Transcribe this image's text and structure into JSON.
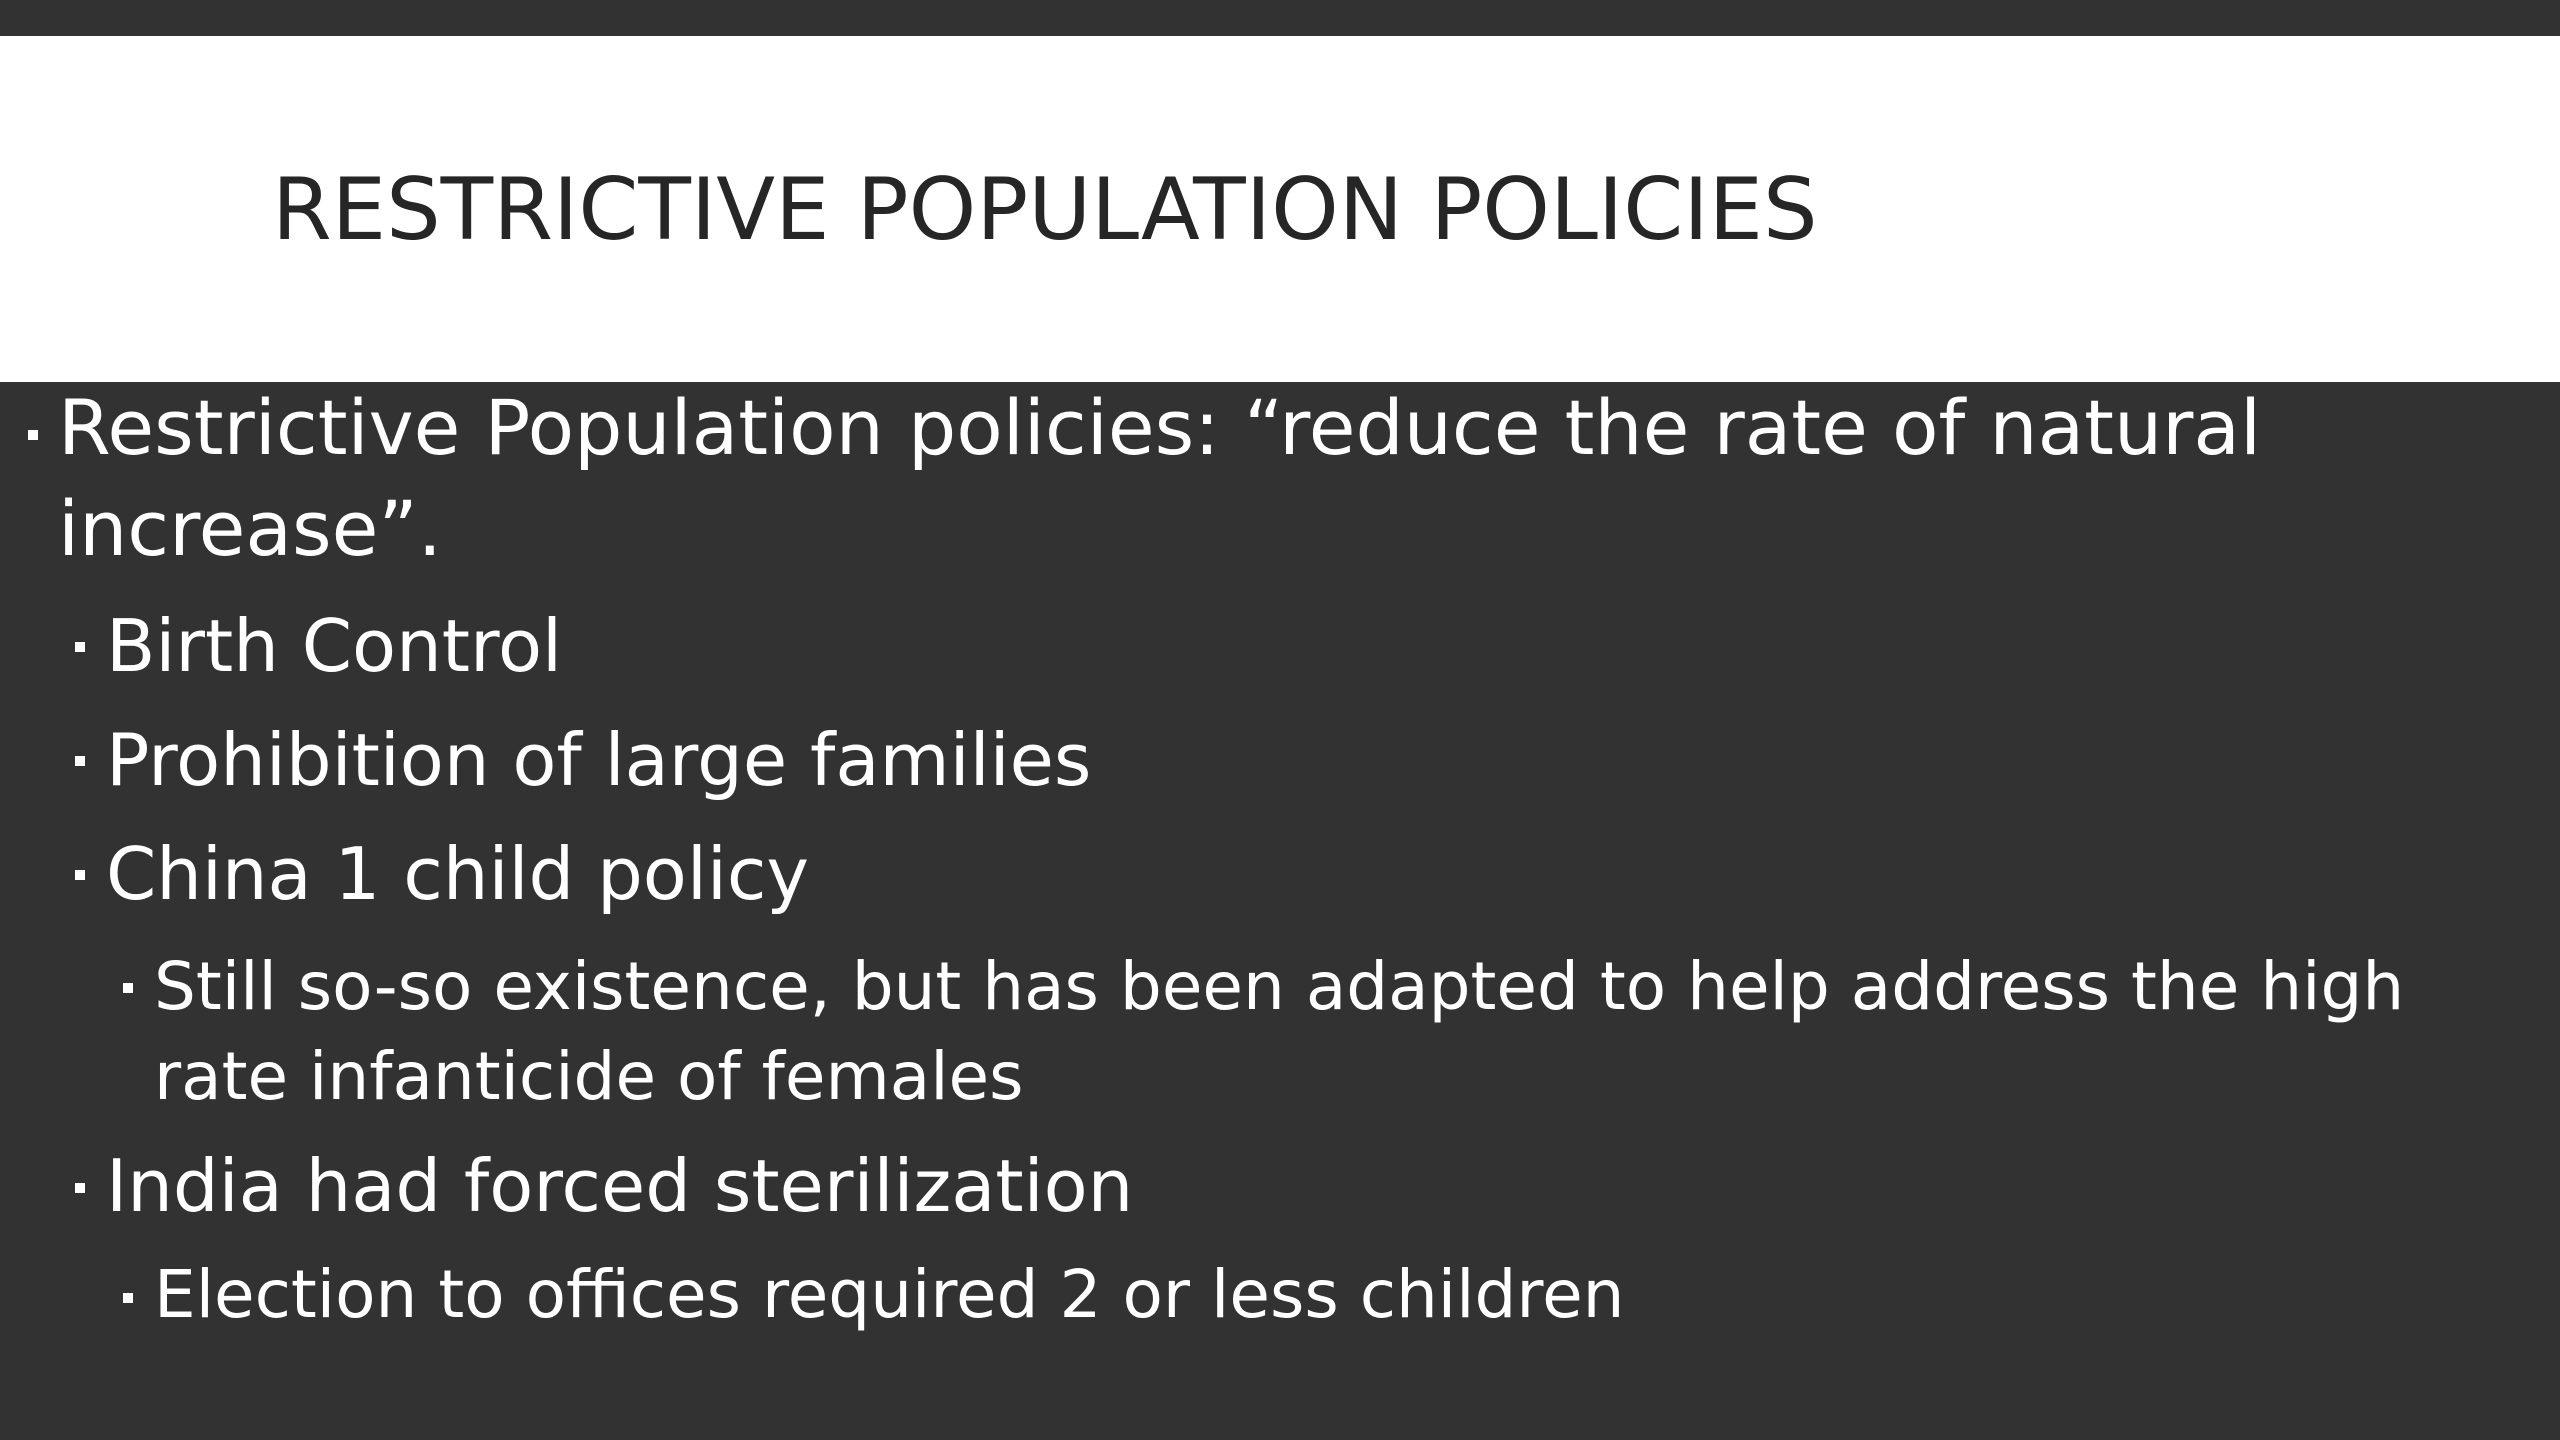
{
  "slide": {
    "title": "RESTRICTIVE POPULATION POLICIES",
    "bullets": [
      {
        "level": 1,
        "lines": [
          "Restrictive Population policies: “reduce the rate of natural",
          "increase”."
        ]
      },
      {
        "level": 2,
        "lines": [
          "Birth Control"
        ]
      },
      {
        "level": 2,
        "lines": [
          "Prohibition of large families"
        ]
      },
      {
        "level": 2,
        "lines": [
          "China 1 child policy"
        ]
      },
      {
        "level": 3,
        "lines": [
          "Still so-so existence, but has been adapted to help address the high",
          "rate infanticide of females"
        ]
      },
      {
        "level": 2,
        "lines": [
          "India had forced sterilization"
        ]
      },
      {
        "level": 3,
        "lines": [
          "Election to offices required 2 or less children"
        ]
      }
    ]
  },
  "colors": {
    "background": "#323232",
    "title_band": "#ffffff",
    "title_text": "#262626",
    "body_text": "#ffffff"
  }
}
